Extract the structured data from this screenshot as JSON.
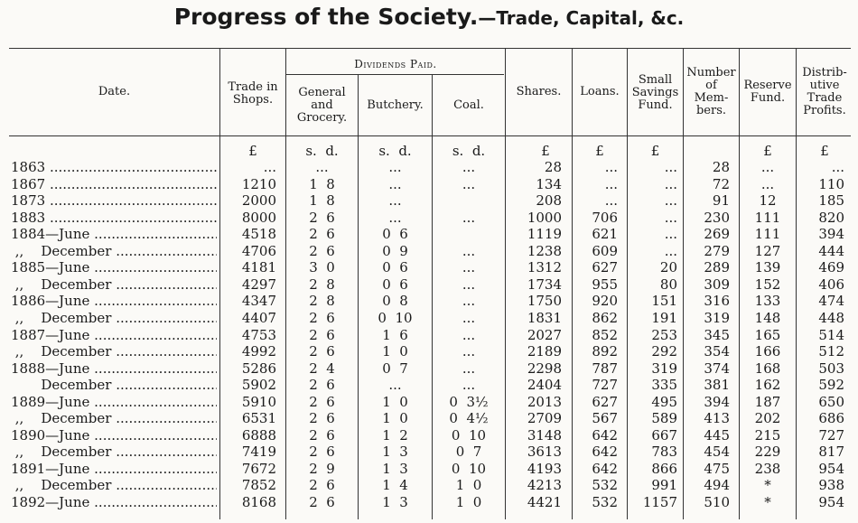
{
  "title": {
    "main": "Progress of the Society.",
    "sub": "—Trade, Capital, &c."
  },
  "headers": {
    "date": "Date.",
    "trade": [
      "Trade in",
      "Shops."
    ],
    "dividends": "Dividends Paid.",
    "general": [
      "General",
      "and",
      "Grocery."
    ],
    "butchery": "Butchery.",
    "coal": "Coal.",
    "shares": "Shares.",
    "loans": "Loans.",
    "savings": [
      "Small",
      "Savings",
      "Fund."
    ],
    "members": [
      "Number",
      "of",
      "Mem-",
      "bers."
    ],
    "reserve": [
      "Reserve",
      "Fund."
    ],
    "profits": [
      "Distrib-",
      "utive",
      "Trade",
      "Profits."
    ]
  },
  "units": {
    "trade": "£",
    "general": "s.  d.",
    "butchery": "s.  d.",
    "coal": "s.  d.",
    "shares": "£",
    "loans": "£",
    "savings": "£",
    "reserve": "£",
    "profits": "£"
  },
  "rows": [
    {
      "date": "1863 ",
      "trade": "...",
      "general": "...",
      "butchery": "...",
      "coal": "...",
      "shares": "28",
      "loans": "...",
      "savings": "...",
      "members": "28",
      "reserve": "...",
      "profits": "..."
    },
    {
      "date": "1867 ",
      "trade": "1210",
      "general": "1  8",
      "butchery": "...",
      "coal": "...",
      "shares": "134",
      "loans": "...",
      "savings": "...",
      "members": "72",
      "reserve": "...",
      "profits": "110"
    },
    {
      "date": "1873 ",
      "trade": "2000",
      "general": "1  8",
      "butchery": "...",
      "coal": "",
      "shares": "208",
      "loans": "...",
      "savings": "...",
      "members": "91",
      "reserve": "12",
      "profits": "185"
    },
    {
      "date": "1883 ",
      "trade": "8000",
      "general": "2  6",
      "butchery": "...",
      "coal": "...",
      "shares": "1000",
      "loans": "706",
      "savings": "...",
      "members": "230",
      "reserve": "111",
      "profits": "820"
    },
    {
      "date": "1884—June ",
      "trade": "4518",
      "general": "2  6",
      "butchery": "0  6",
      "coal": "",
      "shares": "1119",
      "loans": "621",
      "savings": "...",
      "members": "269",
      "reserve": "111",
      "profits": "394"
    },
    {
      "date": " ,,    December ",
      "trade": "4706",
      "general": "2  6",
      "butchery": "0  9",
      "coal": "...",
      "shares": "1238",
      "loans": "609",
      "savings": "...",
      "members": "279",
      "reserve": "127",
      "profits": "444"
    },
    {
      "date": "1885—June ",
      "trade": "4181",
      "general": "3  0",
      "butchery": "0  6",
      "coal": "...",
      "shares": "1312",
      "loans": "627",
      "savings": "20",
      "members": "289",
      "reserve": "139",
      "profits": "469"
    },
    {
      "date": " ,,    December ",
      "trade": "4297",
      "general": "2  8",
      "butchery": "0  6",
      "coal": "...",
      "shares": "1734",
      "loans": "955",
      "savings": "80",
      "members": "309",
      "reserve": "152",
      "profits": "406"
    },
    {
      "date": "1886—June ",
      "trade": "4347",
      "general": "2  8",
      "butchery": "0  8",
      "coal": "...",
      "shares": "1750",
      "loans": "920",
      "savings": "151",
      "members": "316",
      "reserve": "133",
      "profits": "474"
    },
    {
      "date": " ,,    December ",
      "trade": "4407",
      "general": "2  6",
      "butchery": "0  10",
      "coal": "...",
      "shares": "1831",
      "loans": "862",
      "savings": "191",
      "members": "319",
      "reserve": "148",
      "profits": "448"
    },
    {
      "date": "1887—June ",
      "trade": "4753",
      "general": "2  6",
      "butchery": "1  6",
      "coal": "...",
      "shares": "2027",
      "loans": "852",
      "savings": "253",
      "members": "345",
      "reserve": "165",
      "profits": "514"
    },
    {
      "date": " ,,    December ",
      "trade": "4992",
      "general": "2  6",
      "butchery": "1  0",
      "coal": "...",
      "shares": "2189",
      "loans": "892",
      "savings": "292",
      "members": "354",
      "reserve": "166",
      "profits": "512"
    },
    {
      "date": "1888—June ",
      "trade": "5286",
      "general": "2  4",
      "butchery": "0  7",
      "coal": "...",
      "shares": "2298",
      "loans": "787",
      "savings": "319",
      "members": "374",
      "reserve": "168",
      "profits": "503"
    },
    {
      "date": "       December ",
      "trade": "5902",
      "general": "2  6",
      "butchery": "...",
      "coal": "...",
      "shares": "2404",
      "loans": "727",
      "savings": "335",
      "members": "381",
      "reserve": "162",
      "profits": "592"
    },
    {
      "date": "1889—June ",
      "trade": "5910",
      "general": "2  6",
      "butchery": "1  0",
      "coal": "0  3½",
      "shares": "2013",
      "loans": "627",
      "savings": "495",
      "members": "394",
      "reserve": "187",
      "profits": "650"
    },
    {
      "date": " ,,    December ",
      "trade": "6531",
      "general": "2  6",
      "butchery": "1  0",
      "coal": "0  4½",
      "shares": "2709",
      "loans": "567",
      "savings": "589",
      "members": "413",
      "reserve": "202",
      "profits": "686"
    },
    {
      "date": "1890—June ",
      "trade": "6888",
      "general": "2  6",
      "butchery": "1  2",
      "coal": "0  10",
      "shares": "3148",
      "loans": "642",
      "savings": "667",
      "members": "445",
      "reserve": "215",
      "profits": "727"
    },
    {
      "date": " ,,    December ",
      "trade": "7419",
      "general": "2  6",
      "butchery": "1  3",
      "coal": "0  7",
      "shares": "3613",
      "loans": "642",
      "savings": "783",
      "members": "454",
      "reserve": "229",
      "profits": "817"
    },
    {
      "date": "1891—June ",
      "trade": "7672",
      "general": "2  9",
      "butchery": "1  3",
      "coal": "0  10",
      "shares": "4193",
      "loans": "642",
      "savings": "866",
      "members": "475",
      "reserve": "238",
      "profits": "954"
    },
    {
      "date": " ,,    December ",
      "trade": "7852",
      "general": "2  6",
      "butchery": "1  4",
      "coal": "1  0",
      "shares": "4213",
      "loans": "532",
      "savings": "991",
      "members": "494",
      "reserve": "*",
      "profits": "938"
    },
    {
      "date": "1892—June ",
      "trade": "8168",
      "general": "2  6",
      "butchery": "1  3",
      "coal": "1  0",
      "shares": "4421",
      "loans": "532",
      "savings": "1157",
      "members": "510",
      "reserve": "*",
      "profits": "954"
    }
  ]
}
